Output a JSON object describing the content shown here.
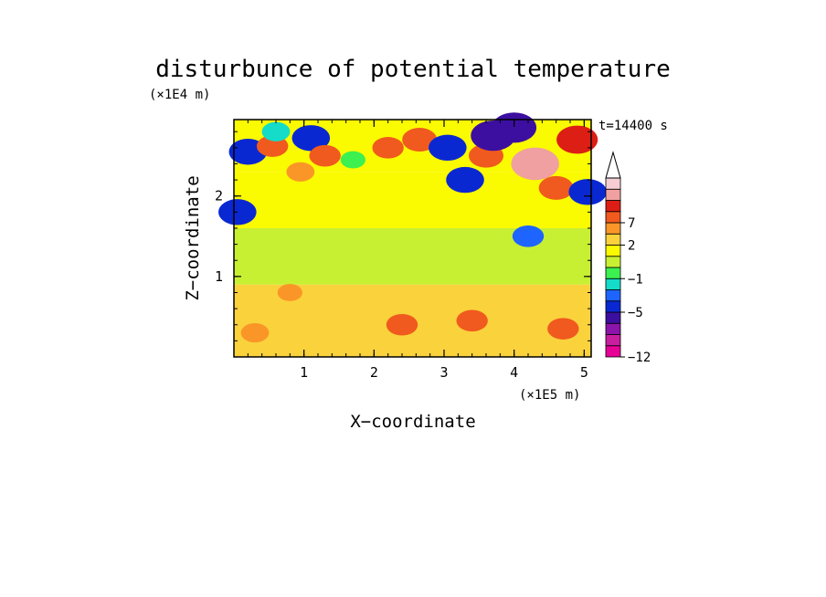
{
  "chart_data": {
    "type": "heatmap",
    "title": "disturbunce of potential temperature",
    "time_label": "t=14400 s",
    "xlabel": "X−coordinate",
    "ylabel": "Z−coordinate",
    "x_scale_label": "(×1E5 m)",
    "y_scale_label": "(×1E4 m)",
    "xlim": [
      0,
      5.1
    ],
    "ylim": [
      0,
      2.95
    ],
    "x_ticks": [
      "1",
      "2",
      "3",
      "4",
      "5"
    ],
    "x_tick_values": [
      1,
      2,
      3,
      4,
      5
    ],
    "y_ticks": [
      "1",
      "2"
    ],
    "y_tick_values": [
      1,
      2
    ],
    "colorbar": {
      "labels": [
        "7",
        "2",
        "−1",
        "−5",
        "−12"
      ],
      "label_values": [
        7,
        2,
        -1,
        -5,
        -12
      ],
      "levels": [
        -12,
        -10,
        -8,
        -6,
        -5,
        -3,
        -2,
        -1,
        0,
        1,
        2,
        4,
        7,
        9,
        12
      ],
      "colors": [
        "#e60096",
        "#c81ea0",
        "#8c14aa",
        "#3c0fa0",
        "#0a28d2",
        "#1e64ff",
        "#14dcc8",
        "#3cf050",
        "#c8f032",
        "#fafa00",
        "#fad23c",
        "#fa9628",
        "#f05a1e",
        "#dc1e14",
        "#f0a0a0",
        "#f5cdd2"
      ],
      "extend": "max"
    },
    "features": [
      {
        "x": 0.2,
        "z": 2.55,
        "value": -6
      },
      {
        "x": 0.55,
        "z": 2.62,
        "value": 4
      },
      {
        "x": 0.6,
        "z": 2.8,
        "value": -3
      },
      {
        "x": 1.1,
        "z": 2.72,
        "value": -6
      },
      {
        "x": 1.3,
        "z": 2.5,
        "value": 4
      },
      {
        "x": 0.95,
        "z": 2.3,
        "value": 3
      },
      {
        "x": 1.7,
        "z": 2.45,
        "value": -2
      },
      {
        "x": 2.2,
        "z": 2.6,
        "value": 4
      },
      {
        "x": 2.65,
        "z": 2.7,
        "value": 5
      },
      {
        "x": 3.05,
        "z": 2.6,
        "value": -6
      },
      {
        "x": 3.3,
        "z": 2.2,
        "value": -6
      },
      {
        "x": 3.6,
        "z": 2.5,
        "value": 5
      },
      {
        "x": 3.7,
        "z": 2.75,
        "value": -8
      },
      {
        "x": 4.0,
        "z": 2.85,
        "value": -8
      },
      {
        "x": 4.3,
        "z": 2.4,
        "value": 9
      },
      {
        "x": 4.6,
        "z": 2.1,
        "value": 5
      },
      {
        "x": 4.9,
        "z": 2.7,
        "value": 7
      },
      {
        "x": 5.05,
        "z": 2.05,
        "value": -6
      },
      {
        "x": 0.05,
        "z": 1.8,
        "value": -6
      },
      {
        "x": 4.2,
        "z": 1.5,
        "value": -4
      },
      {
        "x": 0.8,
        "z": 0.8,
        "value": 2
      },
      {
        "x": 2.4,
        "z": 0.4,
        "value": 4
      },
      {
        "x": 3.4,
        "z": 0.45,
        "value": 4
      },
      {
        "x": 4.7,
        "z": 0.35,
        "value": 4
      },
      {
        "x": 0.3,
        "z": 0.3,
        "value": 3
      }
    ]
  }
}
